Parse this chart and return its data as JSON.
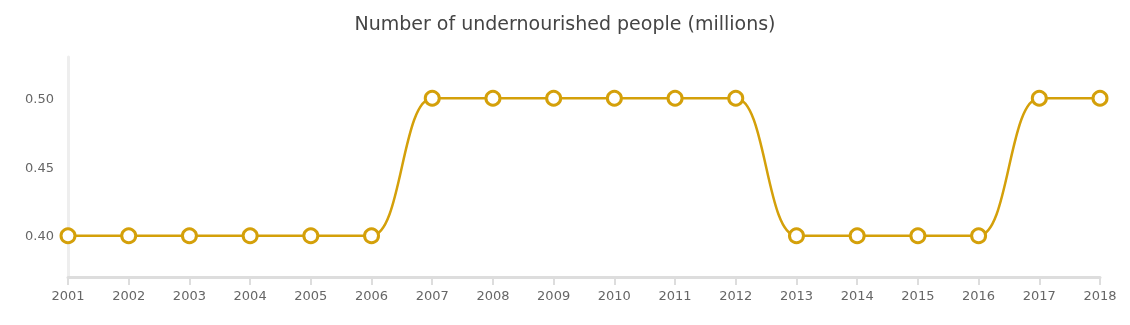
{
  "chart_data": {
    "type": "line",
    "title": "Number of undernourished people (millions)",
    "categories": [
      "2001",
      "2002",
      "2003",
      "2004",
      "2005",
      "2006",
      "2007",
      "2008",
      "2009",
      "2010",
      "2011",
      "2012",
      "2013",
      "2014",
      "2015",
      "2016",
      "2017",
      "2018"
    ],
    "series": [
      {
        "color": "#d4a00a",
        "values": [
          0.4,
          0.4,
          0.4,
          0.4,
          0.4,
          0.4,
          0.5,
          0.5,
          0.5,
          0.5,
          0.5,
          0.5,
          0.4,
          0.4,
          0.4,
          0.4,
          0.5,
          0.5
        ]
      }
    ],
    "ylim": [
      0.37,
      0.53
    ],
    "yticks": [
      {
        "value": 0.4,
        "label": "0.40"
      },
      {
        "value": 0.45,
        "label": "0.45"
      },
      {
        "value": 0.5,
        "label": "0.50"
      }
    ],
    "grid": false,
    "marker": "circle",
    "line_style": "solid"
  }
}
